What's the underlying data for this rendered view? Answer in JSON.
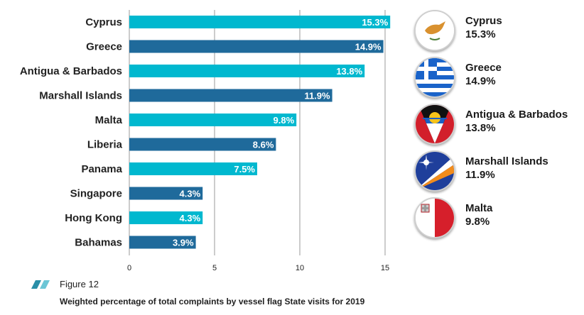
{
  "chart_data": {
    "type": "bar",
    "orientation": "horizontal",
    "categories": [
      "Cyprus",
      "Greece",
      "Antigua & Barbados",
      "Marshall Islands",
      "Malta",
      "Liberia",
      "Panama",
      "Singapore",
      "Hong Kong",
      "Bahamas"
    ],
    "values": [
      15.3,
      14.9,
      13.8,
      11.9,
      9.8,
      8.6,
      7.5,
      4.3,
      4.3,
      3.9
    ],
    "value_labels": [
      "15.3%",
      "14.9%",
      "13.8%",
      "11.9%",
      "9.8%",
      "8.6%",
      "7.5%",
      "4.3%",
      "4.3%",
      "3.9%"
    ],
    "xlim": [
      0,
      15.5
    ],
    "xticks": [
      "0",
      "5",
      "10",
      "15"
    ],
    "grid": "vertical",
    "colors": [
      "#00b8cf",
      "#1f6a9b"
    ]
  },
  "legend": {
    "items": [
      {
        "name": "Cyprus",
        "value": "15.3%",
        "icon": "cyprus-flag-icon"
      },
      {
        "name": "Greece",
        "value": "14.9%",
        "icon": "greece-flag-icon"
      },
      {
        "name": "Antigua & Barbados",
        "value": "13.8%",
        "icon": "antigua-barbuda-flag-icon"
      },
      {
        "name": "Marshall Islands",
        "value": "11.9%",
        "icon": "marshall-islands-flag-icon"
      },
      {
        "name": "Malta",
        "value": "9.8%",
        "icon": "malta-flag-icon"
      }
    ]
  },
  "caption": {
    "figure": "Figure 12",
    "title": "Weighted percentage of total complaints by vessel flag State visits for 2019"
  }
}
